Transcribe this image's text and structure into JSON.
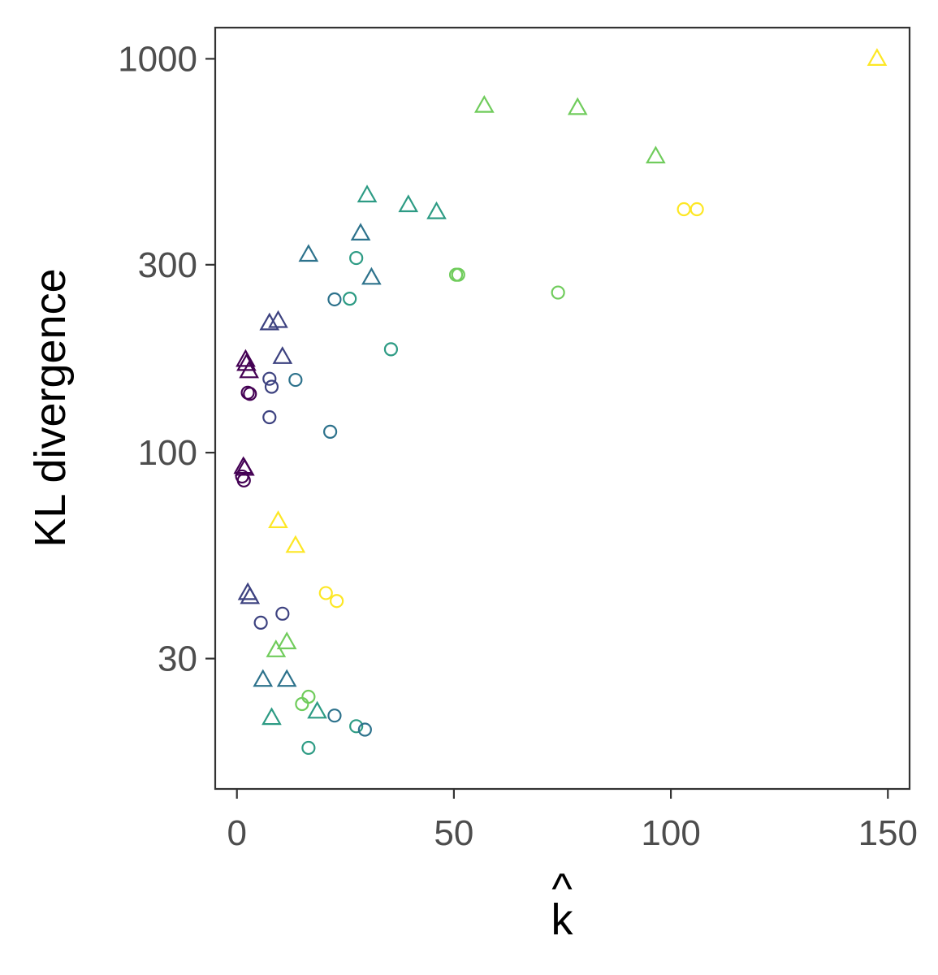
{
  "chart_data": {
    "type": "scatter",
    "title": "",
    "xlabel": "k̂",
    "xlabel_base": "k",
    "xlabel_hat": "^",
    "ylabel": "KL divergence",
    "xlim": [
      -5,
      155
    ],
    "ylim": [
      14,
      1200
    ],
    "yscale": "log",
    "x_ticks": [
      0,
      50,
      100,
      150
    ],
    "x_tick_labels": [
      "0",
      "50",
      "100",
      "150"
    ],
    "y_ticks": [
      30,
      100,
      300,
      1000
    ],
    "y_tick_labels": [
      "30",
      "100",
      "300",
      "1000"
    ],
    "grid": false,
    "legend": "none",
    "marker_shapes": [
      "circle",
      "triangle"
    ],
    "color_scale": {
      "name": "viridis",
      "stops": [
        "#440154",
        "#3B528B",
        "#21908C",
        "#5DC863",
        "#FDE725"
      ]
    },
    "points": [
      {
        "x": 147.5,
        "y": 1000,
        "shape": "triangle",
        "c": 1.0
      },
      {
        "x": 57,
        "y": 760,
        "shape": "triangle",
        "c": 0.78
      },
      {
        "x": 78.5,
        "y": 750,
        "shape": "triangle",
        "c": 0.78
      },
      {
        "x": 96.5,
        "y": 565,
        "shape": "triangle",
        "c": 0.78
      },
      {
        "x": 103,
        "y": 415,
        "shape": "circle",
        "c": 1.0
      },
      {
        "x": 106,
        "y": 415,
        "shape": "circle",
        "c": 1.0
      },
      {
        "x": 30,
        "y": 450,
        "shape": "triangle",
        "c": 0.55
      },
      {
        "x": 39.5,
        "y": 425,
        "shape": "triangle",
        "c": 0.55
      },
      {
        "x": 46,
        "y": 408,
        "shape": "triangle",
        "c": 0.55
      },
      {
        "x": 28.5,
        "y": 360,
        "shape": "triangle",
        "c": 0.38
      },
      {
        "x": 16.5,
        "y": 318,
        "shape": "triangle",
        "c": 0.38
      },
      {
        "x": 27.5,
        "y": 312,
        "shape": "circle",
        "c": 0.55
      },
      {
        "x": 50.5,
        "y": 283,
        "shape": "circle",
        "c": 0.78
      },
      {
        "x": 51,
        "y": 283,
        "shape": "circle",
        "c": 0.78
      },
      {
        "x": 31,
        "y": 278,
        "shape": "triangle",
        "c": 0.38
      },
      {
        "x": 74,
        "y": 255,
        "shape": "circle",
        "c": 0.78
      },
      {
        "x": 22.5,
        "y": 245,
        "shape": "circle",
        "c": 0.38
      },
      {
        "x": 26,
        "y": 246,
        "shape": "circle",
        "c": 0.55
      },
      {
        "x": 7.5,
        "y": 213,
        "shape": "triangle",
        "c": 0.2
      },
      {
        "x": 9.5,
        "y": 216,
        "shape": "triangle",
        "c": 0.2
      },
      {
        "x": 35.5,
        "y": 183,
        "shape": "circle",
        "c": 0.55
      },
      {
        "x": 10.5,
        "y": 175,
        "shape": "triangle",
        "c": 0.2
      },
      {
        "x": 2,
        "y": 172,
        "shape": "triangle",
        "c": 0.0
      },
      {
        "x": 2.2,
        "y": 168,
        "shape": "triangle",
        "c": 0.0
      },
      {
        "x": 2.8,
        "y": 161,
        "shape": "triangle",
        "c": 0.0
      },
      {
        "x": 7.5,
        "y": 154,
        "shape": "circle",
        "c": 0.2
      },
      {
        "x": 13.5,
        "y": 153,
        "shape": "circle",
        "c": 0.38
      },
      {
        "x": 8,
        "y": 147,
        "shape": "circle",
        "c": 0.2
      },
      {
        "x": 2.5,
        "y": 142,
        "shape": "circle",
        "c": 0.0
      },
      {
        "x": 3,
        "y": 141,
        "shape": "circle",
        "c": 0.0
      },
      {
        "x": 7.5,
        "y": 123,
        "shape": "circle",
        "c": 0.2
      },
      {
        "x": 21.5,
        "y": 113,
        "shape": "circle",
        "c": 0.38
      },
      {
        "x": 1.5,
        "y": 92,
        "shape": "triangle",
        "c": 0.0
      },
      {
        "x": 1.8,
        "y": 91,
        "shape": "triangle",
        "c": 0.0
      },
      {
        "x": 1.2,
        "y": 87,
        "shape": "circle",
        "c": 0.0
      },
      {
        "x": 1.6,
        "y": 85,
        "shape": "circle",
        "c": 0.0
      },
      {
        "x": 9.5,
        "y": 67,
        "shape": "triangle",
        "c": 1.0
      },
      {
        "x": 13.5,
        "y": 58,
        "shape": "triangle",
        "c": 1.0
      },
      {
        "x": 2.5,
        "y": 44,
        "shape": "triangle",
        "c": 0.2
      },
      {
        "x": 3,
        "y": 43,
        "shape": "triangle",
        "c": 0.2
      },
      {
        "x": 20.5,
        "y": 44,
        "shape": "circle",
        "c": 1.0
      },
      {
        "x": 23,
        "y": 42,
        "shape": "circle",
        "c": 1.0
      },
      {
        "x": 10.5,
        "y": 39,
        "shape": "circle",
        "c": 0.2
      },
      {
        "x": 5.5,
        "y": 37,
        "shape": "circle",
        "c": 0.2
      },
      {
        "x": 11.5,
        "y": 33,
        "shape": "triangle",
        "c": 0.78
      },
      {
        "x": 9,
        "y": 31.5,
        "shape": "triangle",
        "c": 0.78
      },
      {
        "x": 6,
        "y": 26.5,
        "shape": "triangle",
        "c": 0.38
      },
      {
        "x": 11.5,
        "y": 26.5,
        "shape": "triangle",
        "c": 0.38
      },
      {
        "x": 16.5,
        "y": 24,
        "shape": "circle",
        "c": 0.78
      },
      {
        "x": 15,
        "y": 23,
        "shape": "circle",
        "c": 0.78
      },
      {
        "x": 18.5,
        "y": 22,
        "shape": "triangle",
        "c": 0.55
      },
      {
        "x": 8,
        "y": 21.2,
        "shape": "triangle",
        "c": 0.55
      },
      {
        "x": 22.5,
        "y": 21.5,
        "shape": "circle",
        "c": 0.38
      },
      {
        "x": 27.5,
        "y": 20.2,
        "shape": "circle",
        "c": 0.55
      },
      {
        "x": 29.5,
        "y": 19.8,
        "shape": "circle",
        "c": 0.38
      },
      {
        "x": 16.5,
        "y": 17.8,
        "shape": "circle",
        "c": 0.55
      }
    ]
  }
}
